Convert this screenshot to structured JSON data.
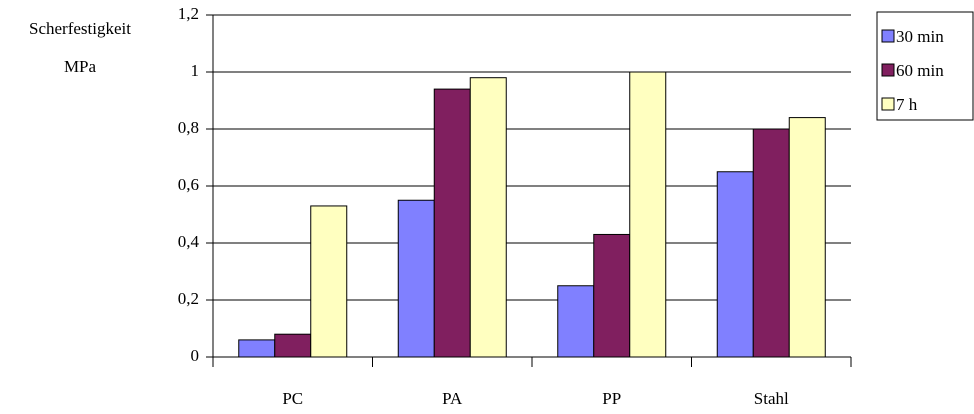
{
  "chart_data": {
    "type": "bar",
    "ylabel": [
      "Scherfestigkeit",
      "MPa"
    ],
    "categories": [
      "PC",
      "PA",
      "PP",
      "Stahl"
    ],
    "series": [
      {
        "name": "30 min",
        "color": "#8080ff",
        "values": [
          0.06,
          0.55,
          0.25,
          0.65
        ]
      },
      {
        "name": "60 min",
        "color": "#801f5f",
        "values": [
          0.08,
          0.94,
          0.43,
          0.8
        ]
      },
      {
        "name": "7 h",
        "color": "#ffffc0",
        "values": [
          0.53,
          0.98,
          1,
          0.84
        ]
      }
    ],
    "ylim": [
      0,
      1.2
    ],
    "yticks": [
      0,
      {
        "value": 0.2,
        "label": "0,2"
      },
      {
        "value": 0.4,
        "label": "0,4"
      },
      {
        "value": 0.6,
        "label": "0,6"
      },
      {
        "value": 0.8,
        "label": "0,8"
      },
      1,
      {
        "value": 1.2,
        "label": "1,2"
      }
    ],
    "grid": true,
    "legend": "top-right"
  }
}
